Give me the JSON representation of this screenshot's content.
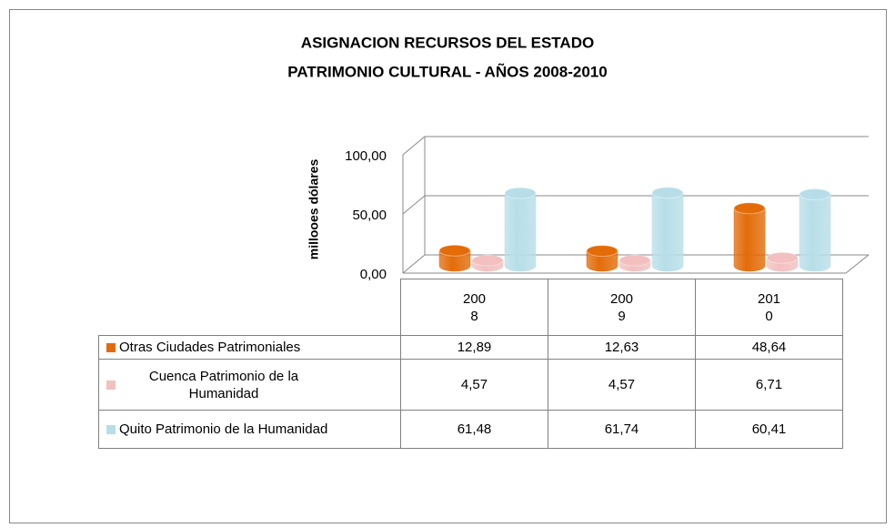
{
  "chart_data": {
    "type": "bar3d",
    "title": "ASIGNACION RECURSOS DEL ESTADO",
    "subtitle": "PATRIMONIO CULTURAL - AÑOS 2008-2010",
    "y_label": "millooes dólares",
    "categories": [
      "2008",
      "2009",
      "2010"
    ],
    "series": [
      {
        "name": "Otras Ciudades Patrimoniales",
        "color": "#e36c09",
        "values": [
          12.89,
          12.63,
          48.64
        ],
        "value_labels": [
          "12,89",
          "12,63",
          "48,64"
        ]
      },
      {
        "name": "Cuenca Patrimonio de la Humanidad",
        "color": "#f2c0c0",
        "values": [
          4.57,
          4.57,
          6.71
        ],
        "value_labels": [
          "4,57",
          "4,57",
          "6,71"
        ]
      },
      {
        "name": "Quito Patrimonio de la Humanidad",
        "color": "#b7dee8",
        "values": [
          61.48,
          61.74,
          60.41
        ],
        "value_labels": [
          "61,48",
          "61,74",
          "60,41"
        ]
      }
    ],
    "ylim": [
      0,
      100
    ],
    "yticks": [
      {
        "value": 0,
        "label": "0,00"
      },
      {
        "value": 50,
        "label": "50,00"
      },
      {
        "value": 100,
        "label": "100,00"
      }
    ],
    "grid": true
  }
}
